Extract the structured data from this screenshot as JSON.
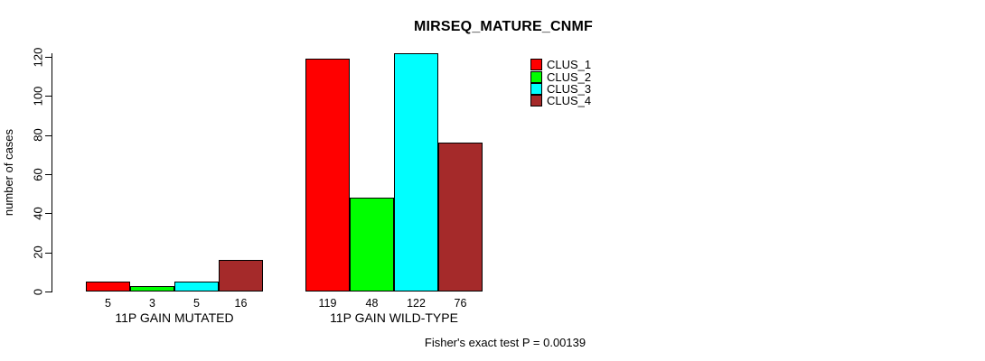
{
  "chart_data": {
    "type": "bar",
    "title": "MIRSEQ_MATURE_CNMF",
    "ylabel": "number of cases",
    "xlabel": "",
    "ylim": [
      0,
      120
    ],
    "yticks": [
      0,
      20,
      40,
      60,
      80,
      100,
      120
    ],
    "grid": false,
    "legend_position": "top-right",
    "bar_value_labels": true,
    "categories": [
      "11P GAIN MUTATED",
      "11P GAIN WILD-TYPE"
    ],
    "series": [
      {
        "name": "CLUS_1",
        "color": "#FF0000",
        "values": [
          5,
          119
        ]
      },
      {
        "name": "CLUS_2",
        "color": "#00FF00",
        "values": [
          3,
          48
        ]
      },
      {
        "name": "CLUS_3",
        "color": "#00FFFF",
        "values": [
          5,
          122
        ]
      },
      {
        "name": "CLUS_4",
        "color": "#A52A2A",
        "values": [
          16,
          76
        ]
      }
    ],
    "annotation": "Fisher's exact test P = 0.00139"
  }
}
